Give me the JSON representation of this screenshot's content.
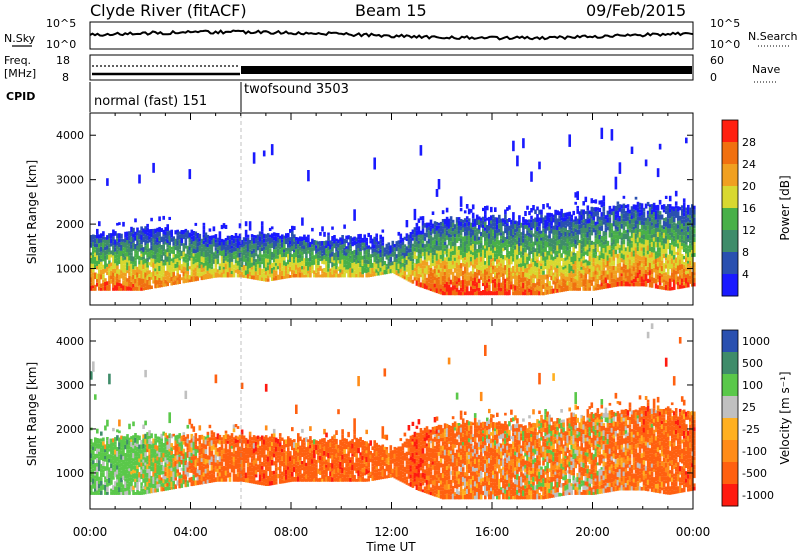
{
  "header": {
    "station": "Clyde River (fitACF)",
    "beam": "Beam 15",
    "date": "09/Feb/2015"
  },
  "noise_panel": {
    "left_label": "N.Sky",
    "left_ticks": [
      "10^5",
      "10^0"
    ],
    "right_label": "N.Search",
    "right_ticks": [
      "10^5",
      "10^0"
    ]
  },
  "freq_panel": {
    "left_label_1": "Freq.",
    "left_label_2": "[MHz]",
    "left_ticks": [
      "18",
      "8"
    ],
    "right_label": "Nave",
    "right_ticks": [
      "60",
      "0"
    ]
  },
  "cpid_panel": {
    "label": "CPID",
    "modes": [
      {
        "name": "normal (fast) 151",
        "start": "00:00",
        "end": "06:00"
      },
      {
        "name": "twofsound 3503",
        "start": "06:00",
        "end": "24:00"
      }
    ]
  },
  "xaxis": {
    "label": "Time UT",
    "ticks": [
      "00:00",
      "04:00",
      "08:00",
      "12:00",
      "16:00",
      "20:00",
      "00:00"
    ]
  },
  "colors": {
    "power": [
      "#1a1aff",
      "#2a50b0",
      "#3f8c6a",
      "#48b048",
      "#d8d830",
      "#f0a020",
      "#f07010",
      "#ff2010"
    ],
    "velocity": [
      "#ff1a10",
      "#ff6010",
      "#ff8c18",
      "#ffb020",
      "#c0c0c0",
      "#5ac84a",
      "#3f8c6a",
      "#2a50b0"
    ]
  },
  "chart_data": [
    {
      "type": "heatmap",
      "title": "",
      "ylabel": "Slant Range [km]",
      "xlabel": "",
      "ylim": [
        180,
        4500
      ],
      "yticks": [
        1000,
        2000,
        3000,
        4000
      ],
      "xlim_hours": [
        0,
        24
      ],
      "colorbar": {
        "label": "Power [dB]",
        "range": [
          0,
          32
        ],
        "ticks": [
          "4",
          "8",
          "12",
          "16",
          "20",
          "24",
          "28"
        ]
      },
      "profile": {
        "hours": [
          0,
          1,
          2,
          3,
          4,
          5,
          6,
          7,
          8,
          9,
          10,
          11,
          12,
          13,
          14,
          15,
          16,
          17,
          18,
          19,
          20,
          21,
          22,
          23,
          24
        ],
        "echo_top_km": [
          1750,
          1750,
          1850,
          1850,
          1800,
          1650,
          1700,
          1750,
          1700,
          1600,
          1650,
          1700,
          1500,
          1900,
          2050,
          2100,
          2150,
          2050,
          2150,
          2200,
          2300,
          2350,
          2450,
          2400,
          2350
        ],
        "echo_bottom_km": [
          500,
          500,
          500,
          600,
          700,
          800,
          800,
          700,
          800,
          800,
          800,
          800,
          900,
          600,
          400,
          400,
          400,
          400,
          400,
          500,
          500,
          600,
          600,
          500,
          600
        ],
        "peak_power_db": [
          28,
          28,
          26,
          24,
          24,
          22,
          20,
          22,
          24,
          22,
          20,
          20,
          16,
          26,
          30,
          30,
          30,
          28,
          26,
          24,
          26,
          28,
          28,
          28,
          26
        ]
      }
    },
    {
      "type": "heatmap",
      "title": "",
      "ylabel": "Slant Range [km]",
      "xlabel": "Time UT",
      "ylim": [
        180,
        4500
      ],
      "yticks": [
        1000,
        2000,
        3000,
        4000
      ],
      "xlim_hours": [
        0,
        24
      ],
      "colorbar": {
        "label": "Velocity [m s⁻¹]",
        "range": [
          -1200,
          1200
        ],
        "ticks": [
          "1000",
          "500",
          "100",
          "25",
          "-25",
          "-100",
          "-500",
          "-1000"
        ]
      },
      "profile": {
        "hours": [
          0,
          1,
          2,
          3,
          4,
          5,
          6,
          7,
          8,
          9,
          10,
          11,
          12,
          13,
          14,
          15,
          16,
          17,
          18,
          19,
          20,
          21,
          22,
          23,
          24
        ],
        "echo_top_km": [
          1750,
          1750,
          1850,
          1850,
          1800,
          1800,
          1800,
          1750,
          1750,
          1700,
          1700,
          1700,
          1500,
          1900,
          2050,
          2100,
          2150,
          2050,
          2150,
          2200,
          2300,
          2350,
          2450,
          2400,
          2350
        ],
        "echo_bottom_km": [
          500,
          500,
          500,
          600,
          700,
          800,
          800,
          700,
          800,
          800,
          800,
          800,
          900,
          600,
          400,
          400,
          400,
          400,
          400,
          500,
          500,
          600,
          600,
          500,
          600
        ],
        "mean_velocity_ms": [
          300,
          300,
          200,
          100,
          -50,
          -200,
          -300,
          -300,
          -300,
          -250,
          -300,
          -300,
          -200,
          -400,
          -200,
          -150,
          -150,
          -100,
          -50,
          -50,
          -100,
          -150,
          -200,
          -250,
          -300
        ]
      }
    }
  ]
}
